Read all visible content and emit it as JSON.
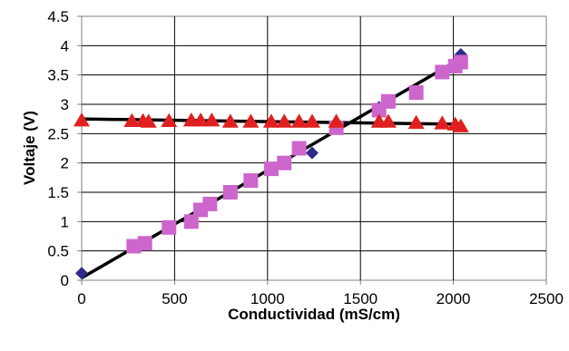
{
  "chart_data": {
    "type": "scatter",
    "title": "",
    "xlabel": "Conductividad (mS/cm)",
    "ylabel": "Voltaje (V)",
    "xlim": [
      0,
      2500
    ],
    "ylim": [
      0,
      4.5
    ],
    "xticks": [
      0,
      500,
      1000,
      1500,
      2000,
      2500
    ],
    "yticks": [
      0,
      0.5,
      1,
      1.5,
      2,
      2.5,
      3,
      3.5,
      4,
      4.5
    ],
    "xtick_labels": [
      "0",
      "500",
      "1000",
      "1500",
      "2000",
      "2500"
    ],
    "ytick_labels": [
      "0",
      "0.5",
      "1",
      "1.5",
      "2",
      "2.5",
      "3",
      "3.5",
      "4",
      "4.5"
    ],
    "grid": true,
    "legend": "none",
    "series": [
      {
        "marker": "diamond",
        "color": "#2e2a8c",
        "x": [
          0,
          1240,
          1600,
          2040
        ],
        "y": [
          0.12,
          2.17,
          2.95,
          3.85
        ]
      },
      {
        "marker": "square",
        "color": "#cc66cc",
        "x": [
          280,
          340,
          470,
          590,
          640,
          690,
          800,
          910,
          1020,
          1090,
          1170,
          1370,
          1600,
          1650,
          1800,
          1940,
          2010,
          2040
        ],
        "y": [
          0.58,
          0.63,
          0.9,
          1.0,
          1.2,
          1.3,
          1.5,
          1.7,
          1.9,
          2.0,
          2.25,
          2.6,
          2.9,
          3.05,
          3.2,
          3.55,
          3.65,
          3.72
        ]
      },
      {
        "marker": "triangle",
        "color": "#e02020",
        "x": [
          0,
          270,
          330,
          360,
          470,
          590,
          640,
          700,
          800,
          910,
          1020,
          1090,
          1170,
          1240,
          1370,
          1600,
          1650,
          1800,
          1940,
          2010,
          2040
        ],
        "y": [
          2.72,
          2.71,
          2.71,
          2.7,
          2.71,
          2.72,
          2.72,
          2.72,
          2.7,
          2.7,
          2.7,
          2.7,
          2.7,
          2.7,
          2.7,
          2.7,
          2.7,
          2.68,
          2.67,
          2.65,
          2.62
        ]
      }
    ],
    "trendlines": [
      {
        "color": "#000000",
        "x": [
          0,
          2040
        ],
        "y": [
          0.04,
          3.78
        ]
      },
      {
        "color": "#000000",
        "x": [
          0,
          2040
        ],
        "y": [
          2.75,
          2.66
        ]
      }
    ]
  }
}
